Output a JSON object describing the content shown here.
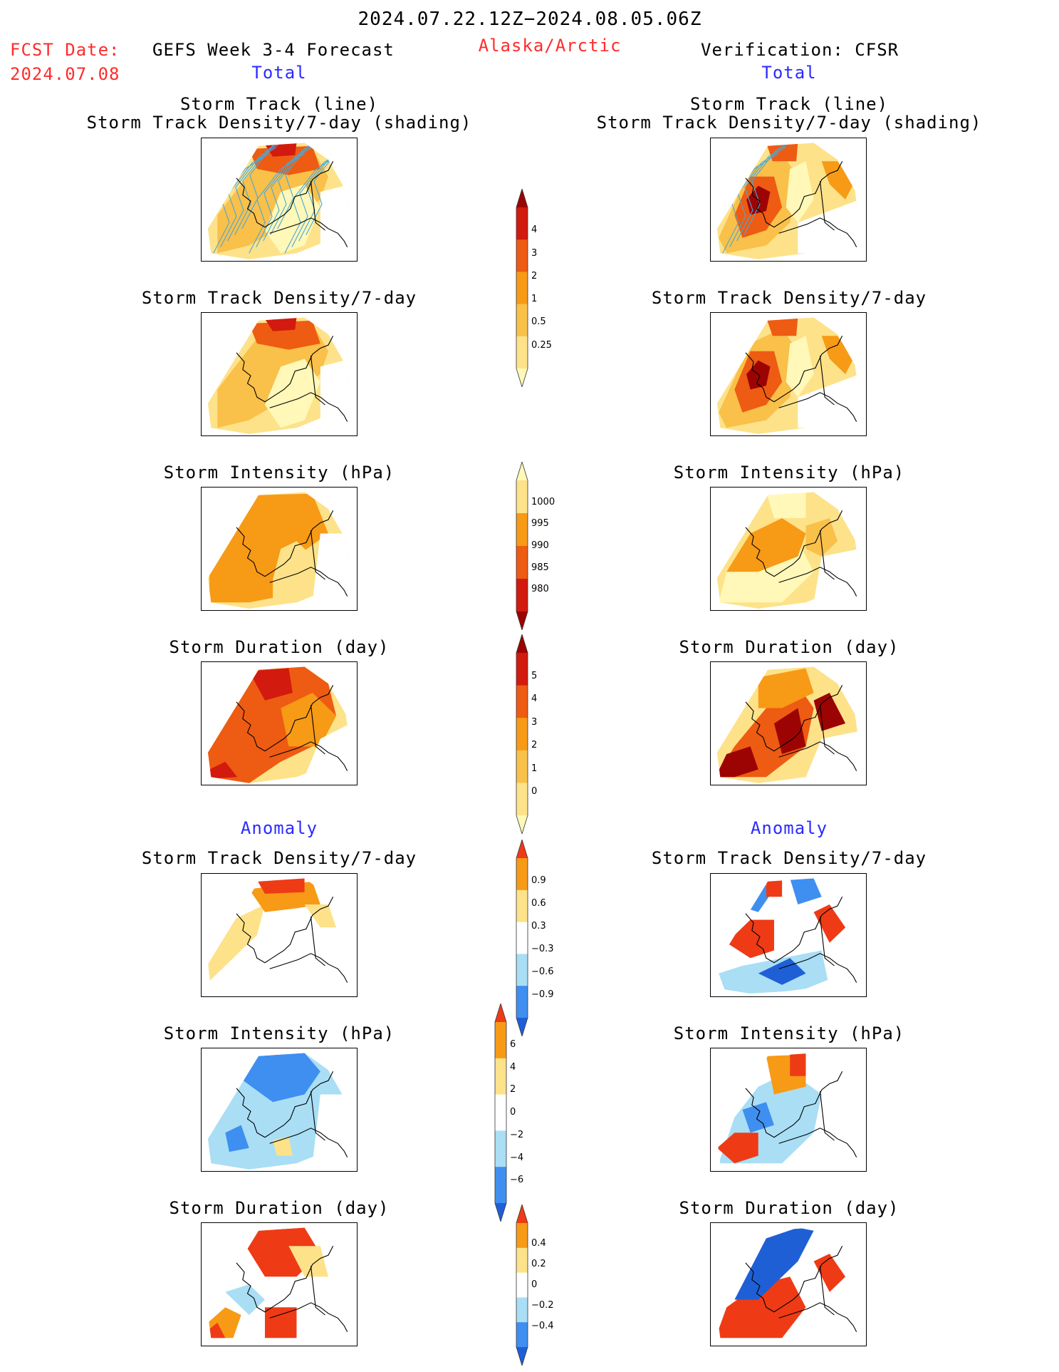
{
  "header": {
    "date_range": "2024.07.22.12Z−2024.08.05.06Z",
    "fcst_label": "FCST Date:",
    "fcst_date": "2024.07.08",
    "left_title": "GEFS Week 3-4 Forecast",
    "region": "Alaska/Arctic",
    "right_title": "Verification: CFSR"
  },
  "sections": {
    "total": "Total",
    "anomaly": "Anomaly"
  },
  "panel_titles": {
    "track_line": "Storm Track (line)",
    "track_shading": "Storm Track Density/7-day (shading)",
    "density": "Storm Track Density/7-day",
    "intensity": "Storm Intensity (hPa)",
    "duration": "Storm Duration (day)"
  },
  "colorbars": {
    "density_total": [
      "4",
      "3",
      "2",
      "1",
      "0.5",
      "0.25"
    ],
    "intensity_total": [
      "1000",
      "995",
      "990",
      "985",
      "980"
    ],
    "duration_total": [
      "5",
      "4",
      "3",
      "2",
      "1",
      "0"
    ],
    "density_anom": [
      "0.9",
      "0.6",
      "0.3",
      "−0.3",
      "−0.6",
      "−0.9"
    ],
    "intensity_anom": [
      "6",
      "4",
      "2",
      "0",
      "−2",
      "−4",
      "−6"
    ],
    "duration_anom": [
      "0.4",
      "0.2",
      "0",
      "−0.2",
      "−0.4"
    ]
  },
  "colors": {
    "warm_scale": [
      "#fff8b8",
      "#fde28a",
      "#f9c04a",
      "#f79a16",
      "#ee5b12",
      "#d21a0f",
      "#9c0404"
    ],
    "anom_scale": [
      "#1f5fd6",
      "#3f8ff0",
      "#a9def5",
      "#ffffff",
      "#fde28a",
      "#f79a16",
      "#ee3b16"
    ],
    "track_line": "#4aa8d8",
    "title_red": "#ff2b2b",
    "title_blue": "#2b2bff"
  }
}
